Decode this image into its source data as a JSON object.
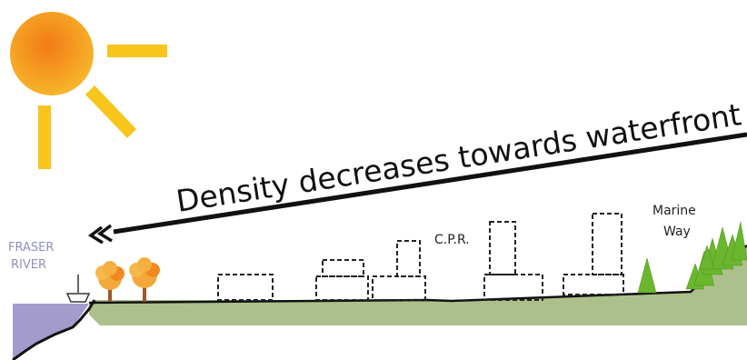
{
  "title": "Density decreases towards waterfront",
  "labels": {
    "river_line1": "FRASER",
    "river_line2": "RIVER",
    "cpr": "C.P.R.",
    "marine_line1": "Marine",
    "marine_line2": "Way"
  },
  "colors": {
    "sun": "#f4a51c",
    "sun_rays": "#f7c51c",
    "water": "#a29bcb",
    "land": "#adc08b",
    "tree_autumn": "#f2a93a",
    "trunk": "#9a5a2a",
    "conifer": "#6ab72e",
    "building_outline": "#222222",
    "arrow": "#111111"
  },
  "icons": [
    "sun-icon",
    "boat-icon",
    "deciduous-tree-icon",
    "conifer-tree-icon",
    "double-chevron-arrowhead-icon"
  ]
}
